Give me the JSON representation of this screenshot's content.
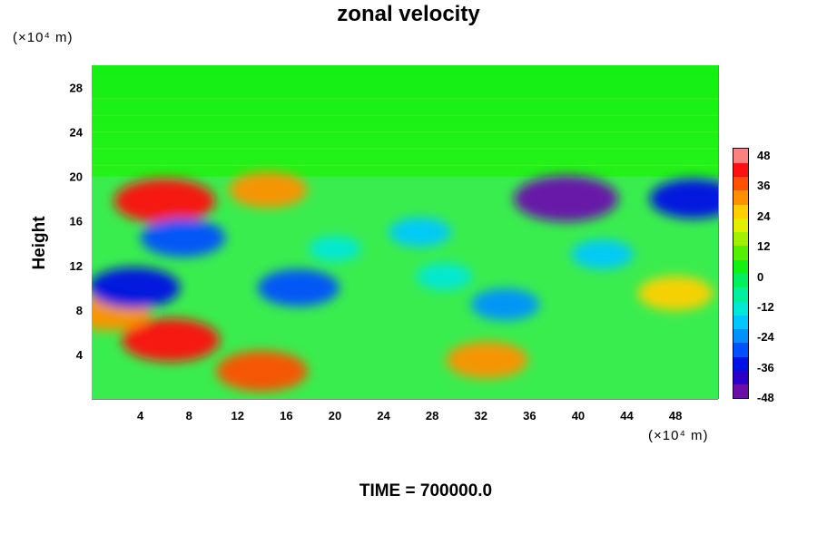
{
  "chart_data": {
    "type": "heatmap",
    "title": "zonal velocity",
    "ylabel": "Height",
    "y_unit": "(×10⁴ m)",
    "x_unit": "(×10⁴ m)",
    "annotation": "TIME = 700000.0",
    "xlim": [
      0,
      51.5
    ],
    "ylim": [
      0,
      30
    ],
    "x_ticks": [
      4,
      8,
      12,
      16,
      20,
      24,
      28,
      32,
      36,
      40,
      44,
      48
    ],
    "y_ticks": [
      4,
      8,
      12,
      16,
      20,
      24,
      28
    ],
    "colorbar": {
      "min": -48,
      "max": 48,
      "step": 6,
      "labels": [
        48,
        36,
        24,
        12,
        0,
        -12,
        -24,
        -36,
        -48
      ],
      "colors": [
        "#6a0dad",
        "#2b00c8",
        "#0010e6",
        "#0050ff",
        "#0090ff",
        "#00c8ff",
        "#00e8d8",
        "#00f0a0",
        "#00f060",
        "#10f210",
        "#50f000",
        "#a0f000",
        "#e0f000",
        "#ffd000",
        "#ff9000",
        "#ff5000",
        "#ff1010",
        "#ff8080"
      ]
    },
    "regions": [
      {
        "x": 6,
        "y": 17.8,
        "value": 42
      },
      {
        "x": 14.5,
        "y": 18.8,
        "value": 28
      },
      {
        "x": 6.5,
        "y": 5.3,
        "value": 40
      },
      {
        "x": 14,
        "y": 2.5,
        "value": 36
      },
      {
        "x": 32.5,
        "y": 3.5,
        "value": 30
      },
      {
        "x": 1.5,
        "y": 7.8,
        "value": 30
      },
      {
        "x": 48,
        "y": 9.5,
        "value": 26
      },
      {
        "x": 39,
        "y": 18,
        "value": -44
      },
      {
        "x": 49.5,
        "y": 18,
        "value": -34
      },
      {
        "x": 3.5,
        "y": 10,
        "value": -36
      },
      {
        "x": 7.5,
        "y": 14.5,
        "value": -32
      },
      {
        "x": 17,
        "y": 10,
        "value": -30
      },
      {
        "x": 34,
        "y": 8.5,
        "value": -22
      },
      {
        "x": 27,
        "y": 15,
        "value": -18
      },
      {
        "x": 42,
        "y": 13,
        "value": -18
      },
      {
        "x": 29,
        "y": 11,
        "value": -14
      },
      {
        "x": 20,
        "y": 13.5,
        "value": -12
      }
    ]
  }
}
